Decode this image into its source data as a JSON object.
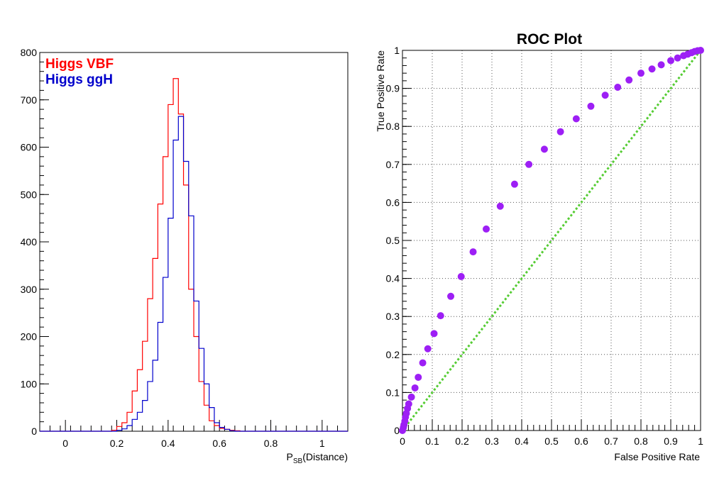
{
  "chart_data": [
    {
      "type": "histogram",
      "title": "",
      "xlabel_main": "P",
      "xlabel_sub": "SB",
      "xlabel_rest": "(Distance)",
      "ylabel": "",
      "xlim": [
        -0.1,
        1.1
      ],
      "ylim": [
        0,
        800
      ],
      "x_ticks": [
        "0",
        "0.2",
        "0.4",
        "0.6",
        "0.8",
        "1"
      ],
      "x_tick_values": [
        0,
        0.2,
        0.4,
        0.6,
        0.8,
        1
      ],
      "y_ticks": [
        "0",
        "100",
        "200",
        "300",
        "400",
        "500",
        "600",
        "700",
        "800"
      ],
      "y_tick_values": [
        0,
        100,
        200,
        300,
        400,
        500,
        600,
        700,
        800
      ],
      "bin_start": 0.18,
      "bin_width": 0.02,
      "legend": [
        {
          "name": "Higgs VBF",
          "color": "#ff0000"
        },
        {
          "name": "Higgs ggH",
          "color": "#0000cc"
        }
      ],
      "series": [
        {
          "name": "Higgs VBF",
          "color": "#ff0000",
          "values": [
            2,
            10,
            18,
            40,
            85,
            130,
            190,
            280,
            365,
            480,
            580,
            690,
            745,
            670,
            520,
            300,
            200,
            105,
            55,
            22,
            12,
            6,
            4,
            2,
            1
          ]
        },
        {
          "name": "Higgs ggH",
          "color": "#0000cc",
          "values": [
            0,
            2,
            5,
            12,
            25,
            40,
            65,
            105,
            150,
            230,
            325,
            450,
            615,
            665,
            570,
            455,
            275,
            175,
            100,
            50,
            18,
            8,
            4,
            1,
            0
          ]
        }
      ]
    },
    {
      "type": "scatter",
      "title": "ROC Plot",
      "xlabel": "False Positive Rate",
      "ylabel": "True Positive Rate",
      "xlim": [
        0,
        1
      ],
      "ylim": [
        0,
        1
      ],
      "grid": true,
      "x_ticks": [
        "0",
        "0.1",
        "0.2",
        "0.3",
        "0.4",
        "0.5",
        "0.6",
        "0.7",
        "0.8",
        "0.9",
        "1"
      ],
      "y_ticks": [
        "0",
        "0.1",
        "0.2",
        "0.3",
        "0.4",
        "0.5",
        "0.6",
        "0.7",
        "0.8",
        "0.9",
        "1"
      ],
      "tick_values": [
        0,
        0.1,
        0.2,
        0.3,
        0.4,
        0.5,
        0.6,
        0.7,
        0.8,
        0.9,
        1
      ],
      "point_color": "#9d1ff5",
      "diagonal_color": "#55cc33",
      "points": [
        [
          0.0,
          0.0
        ],
        [
          0.003,
          0.008
        ],
        [
          0.005,
          0.015
        ],
        [
          0.008,
          0.025
        ],
        [
          0.01,
          0.035
        ],
        [
          0.013,
          0.045
        ],
        [
          0.017,
          0.058
        ],
        [
          0.021,
          0.07
        ],
        [
          0.03,
          0.088
        ],
        [
          0.042,
          0.112
        ],
        [
          0.053,
          0.14
        ],
        [
          0.068,
          0.178
        ],
        [
          0.085,
          0.215
        ],
        [
          0.106,
          0.255
        ],
        [
          0.128,
          0.302
        ],
        [
          0.162,
          0.353
        ],
        [
          0.197,
          0.405
        ],
        [
          0.237,
          0.47
        ],
        [
          0.281,
          0.53
        ],
        [
          0.328,
          0.59
        ],
        [
          0.376,
          0.648
        ],
        [
          0.424,
          0.7
        ],
        [
          0.476,
          0.74
        ],
        [
          0.53,
          0.786
        ],
        [
          0.583,
          0.82
        ],
        [
          0.632,
          0.853
        ],
        [
          0.68,
          0.882
        ],
        [
          0.722,
          0.903
        ],
        [
          0.76,
          0.922
        ],
        [
          0.8,
          0.94
        ],
        [
          0.837,
          0.951
        ],
        [
          0.868,
          0.962
        ],
        [
          0.9,
          0.973
        ],
        [
          0.923,
          0.98
        ],
        [
          0.943,
          0.986
        ],
        [
          0.957,
          0.99
        ],
        [
          0.97,
          0.994
        ],
        [
          0.98,
          0.997
        ],
        [
          0.99,
          0.999
        ],
        [
          1.0,
          1.0
        ]
      ]
    }
  ]
}
